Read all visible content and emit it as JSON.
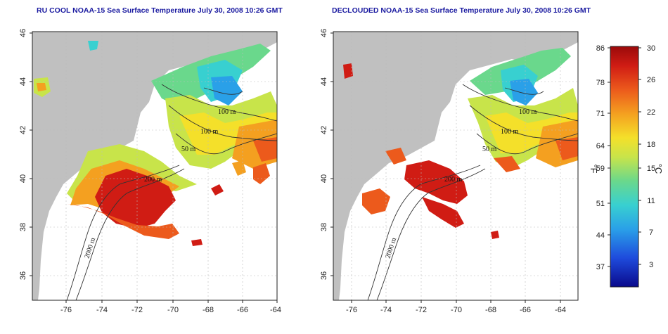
{
  "maps": [
    {
      "title": "RU COOL NOAA-15 Sea Surface Temperature July 30, 2008 10:26 GMT",
      "x_ticks": [
        "-76",
        "-74",
        "-72",
        "-70",
        "-68",
        "-66",
        "-64"
      ],
      "y_ticks": [
        "46",
        "44",
        "42",
        "40",
        "38",
        "36"
      ],
      "contour_labels": [
        "100 m",
        "100 m",
        "50 m",
        "200 m",
        "2000 m"
      ]
    },
    {
      "title": "DECLOUDED NOAA-15 Sea Surface Temperature July 30, 2008 10:26 GMT",
      "x_ticks": [
        "-76",
        "-74",
        "-72",
        "-70",
        "-68",
        "-66",
        "-64"
      ],
      "y_ticks": [
        "46",
        "44",
        "42",
        "40",
        "38",
        "36"
      ],
      "contour_labels": [
        "100 m",
        "100 m",
        "50 m",
        "200 m",
        "2000 m"
      ]
    }
  ],
  "colorbar": {
    "fahrenheit_ticks": [
      "86",
      "78",
      "71",
      "64",
      "59",
      "51",
      "44",
      "37"
    ],
    "celsius_ticks": [
      "30",
      "26",
      "22",
      "18",
      "15",
      "11",
      "7",
      "3"
    ],
    "left_unit": "°F",
    "right_unit": "°C",
    "colors": [
      "#0a0a8c",
      "#1e4bdc",
      "#2aa0e8",
      "#38d0d0",
      "#6ad88c",
      "#c8e44a",
      "#f4e02a",
      "#f4a020",
      "#ec5a1c",
      "#d01c14",
      "#9a0a0a"
    ]
  }
}
